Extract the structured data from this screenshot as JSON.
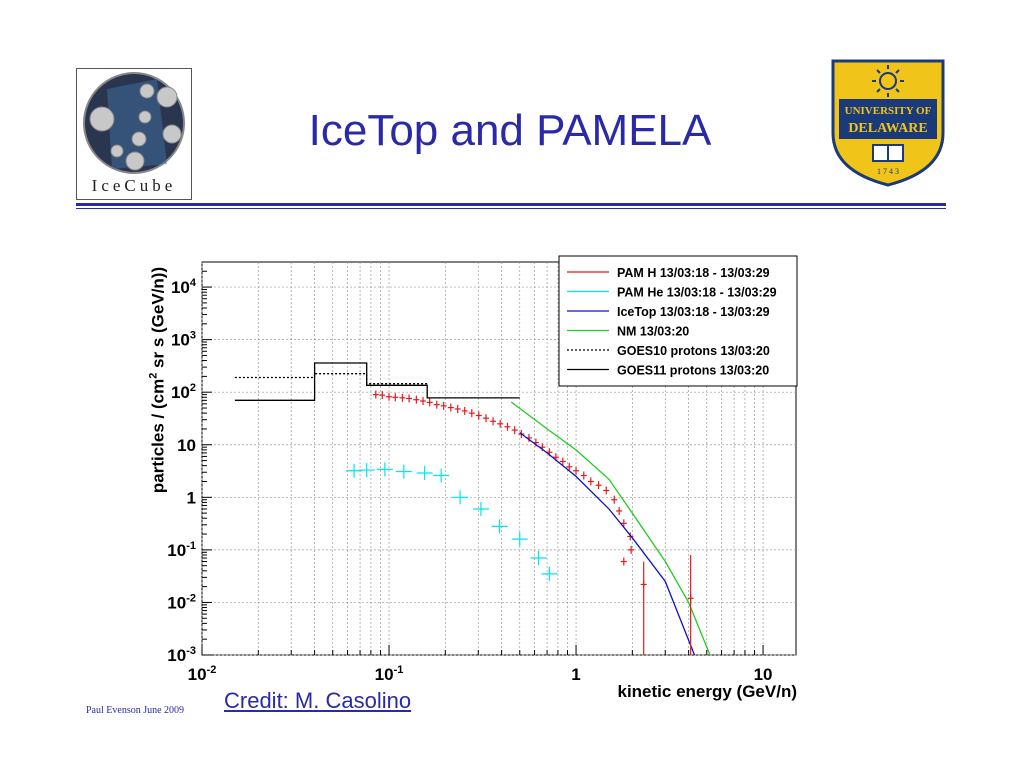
{
  "slide": {
    "title": "IceTop and PAMELA",
    "footer": "Paul Evenson  June 2009",
    "credit": "Credit: M. Casolino"
  },
  "logos": {
    "left_brand": "IceCube",
    "right_name_1": "UNIVERSITY OF",
    "right_name_2": "DELAWARE",
    "right_year": "1 7 4 3"
  },
  "chart_data": {
    "type": "scatter",
    "xlabel": "kinetic energy (GeV/n)",
    "ylabel": "particles / (cm2 sr s (GeV/n))",
    "xscale": "log",
    "yscale": "log",
    "xlim": [
      0.01,
      15
    ],
    "ylim": [
      0.001,
      30000
    ],
    "xticks": [
      {
        "v": 0.01,
        "base": "10",
        "exp": "-2"
      },
      {
        "v": 0.1,
        "base": "10",
        "exp": "-1"
      },
      {
        "v": 1,
        "base": "1",
        "exp": ""
      },
      {
        "v": 10,
        "base": "10",
        "exp": ""
      }
    ],
    "yticks": [
      {
        "v": 0.001,
        "base": "10",
        "exp": "-3"
      },
      {
        "v": 0.01,
        "base": "10",
        "exp": "-2"
      },
      {
        "v": 0.1,
        "base": "10",
        "exp": "-1"
      },
      {
        "v": 1,
        "base": "1",
        "exp": ""
      },
      {
        "v": 10,
        "base": "10",
        "exp": ""
      },
      {
        "v": 100,
        "base": "10",
        "exp": "2"
      },
      {
        "v": 1000,
        "base": "10",
        "exp": "3"
      },
      {
        "v": 10000,
        "base": "10",
        "exp": "4"
      }
    ],
    "grid": true,
    "legend_position": "top-right",
    "series": [
      {
        "name": "PAM H 13/03:18 - 13/03:29",
        "color": "#e41a1c",
        "style": "errorbars",
        "points": [
          [
            0.085,
            90
          ],
          [
            0.092,
            88
          ],
          [
            0.1,
            82
          ],
          [
            0.108,
            80
          ],
          [
            0.118,
            78
          ],
          [
            0.128,
            76
          ],
          [
            0.14,
            72
          ],
          [
            0.152,
            68
          ],
          [
            0.165,
            64
          ],
          [
            0.18,
            58
          ],
          [
            0.196,
            55
          ],
          [
            0.214,
            51
          ],
          [
            0.233,
            48
          ],
          [
            0.254,
            44
          ],
          [
            0.277,
            40
          ],
          [
            0.302,
            36
          ],
          [
            0.33,
            32
          ],
          [
            0.36,
            28
          ],
          [
            0.393,
            25
          ],
          [
            0.43,
            22
          ],
          [
            0.47,
            19
          ],
          [
            0.51,
            16
          ],
          [
            0.56,
            13.5
          ],
          [
            0.61,
            11
          ],
          [
            0.66,
            9
          ],
          [
            0.72,
            7.2
          ],
          [
            0.78,
            5.8
          ],
          [
            0.85,
            4.8
          ],
          [
            0.92,
            3.8
          ],
          [
            1.0,
            3.2
          ],
          [
            1.1,
            2.6
          ],
          [
            1.2,
            2.0
          ],
          [
            1.32,
            1.7
          ],
          [
            1.45,
            1.35
          ],
          [
            1.6,
            0.9
          ],
          [
            1.7,
            0.55
          ],
          [
            1.8,
            0.32
          ],
          [
            1.95,
            0.18
          ],
          [
            1.8,
            0.06
          ],
          [
            1.97,
            0.1
          ],
          [
            2.3,
            0.022
          ],
          [
            4.1,
            0.012
          ]
        ]
      },
      {
        "name": "PAM He 13/03:18 - 13/03:29",
        "color": "#00e5ee",
        "style": "errorbars",
        "points": [
          [
            0.065,
            3.2
          ],
          [
            0.076,
            3.3
          ],
          [
            0.095,
            3.4
          ],
          [
            0.12,
            3.1
          ],
          [
            0.155,
            2.9
          ],
          [
            0.19,
            2.6
          ],
          [
            0.24,
            1.0
          ],
          [
            0.31,
            0.6
          ],
          [
            0.39,
            0.28
          ],
          [
            0.5,
            0.16
          ],
          [
            0.63,
            0.07
          ],
          [
            0.72,
            0.035
          ]
        ]
      },
      {
        "name": "IceTop 13/03:18 - 13/03:29",
        "color": "#1010c8",
        "style": "line",
        "points": [
          [
            0.5,
            17
          ],
          [
            0.7,
            7
          ],
          [
            1.0,
            2.5
          ],
          [
            1.5,
            0.6
          ],
          [
            2.0,
            0.17
          ],
          [
            3.0,
            0.025
          ],
          [
            4.3,
            0.001
          ]
        ]
      },
      {
        "name": "NM 13/03:20",
        "color": "#22cc22",
        "style": "line",
        "points": [
          [
            0.45,
            65
          ],
          [
            0.7,
            20
          ],
          [
            1.0,
            8
          ],
          [
            1.5,
            2.2
          ],
          [
            2.0,
            0.5
          ],
          [
            3.0,
            0.06
          ],
          [
            4.0,
            0.01
          ],
          [
            5.2,
            0.001
          ]
        ]
      },
      {
        "name": "GOES10 protons 13/03:20",
        "color": "#000000",
        "style": "dotted-step",
        "points": [
          [
            0.015,
            190
          ],
          [
            0.04,
            190
          ],
          [
            0.04,
            225
          ],
          [
            0.076,
            225
          ],
          [
            0.076,
            145
          ],
          [
            0.16,
            145
          ]
        ]
      },
      {
        "name": "GOES11 protons 13/03:20",
        "color": "#000000",
        "style": "solid-step",
        "points": [
          [
            0.015,
            70
          ],
          [
            0.04,
            70
          ],
          [
            0.04,
            360
          ],
          [
            0.076,
            360
          ],
          [
            0.076,
            135
          ],
          [
            0.16,
            135
          ],
          [
            0.16,
            78
          ],
          [
            0.5,
            78
          ]
        ]
      }
    ]
  }
}
